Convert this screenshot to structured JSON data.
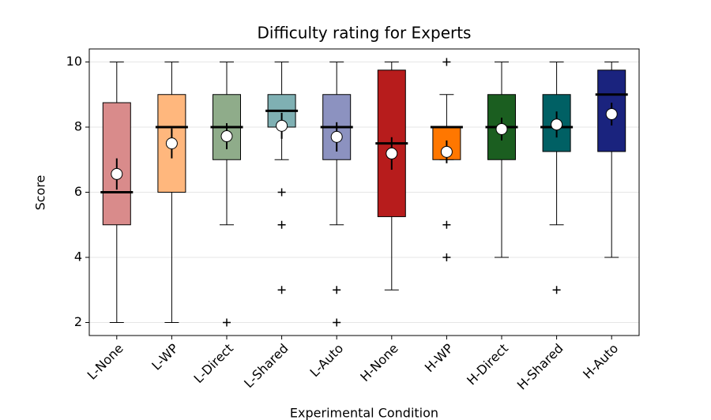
{
  "chart_data": {
    "type": "box",
    "title": "Difficulty rating for Experts",
    "x_label": "Experimental Condition",
    "y_label": "Score",
    "categories": [
      "L-None",
      "L-WP",
      "L-Direct",
      "L-Shared",
      "L-Auto",
      "H-None",
      "H-WP",
      "H-Direct",
      "H-Shared",
      "H-Auto"
    ],
    "ylim": [
      1.6,
      10.4
    ],
    "yticks": [
      2,
      4,
      6,
      8,
      10
    ],
    "grid": true,
    "boxes": [
      {
        "color": "#d98b8b",
        "whislo": 2,
        "q1": 5,
        "med": 6,
        "q3": 8.75,
        "whishi": 10,
        "mean": 6.56,
        "mean_err": 0.48,
        "fliers": []
      },
      {
        "color": "#ffb77d",
        "whislo": 2,
        "q1": 6,
        "med": 8,
        "q3": 9,
        "whishi": 10,
        "mean": 7.5,
        "mean_err": 0.46,
        "fliers": []
      },
      {
        "color": "#8fac8a",
        "whislo": 5,
        "q1": 7,
        "med": 8,
        "q3": 9,
        "whishi": 10,
        "mean": 7.72,
        "mean_err": 0.4,
        "fliers": [
          2
        ]
      },
      {
        "color": "#7fb0b3",
        "whislo": 7,
        "q1": 8,
        "med": 8.5,
        "q3": 9,
        "whishi": 10,
        "mean": 8.04,
        "mean_err": 0.4,
        "fliers": [
          6,
          5,
          3
        ]
      },
      {
        "color": "#8c92c0",
        "whislo": 5,
        "q1": 7,
        "med": 8,
        "q3": 9,
        "whishi": 10,
        "mean": 7.7,
        "mean_err": 0.45,
        "fliers": [
          3,
          2
        ]
      },
      {
        "color": "#b71c1c",
        "whislo": 3,
        "q1": 5.25,
        "med": 7.5,
        "q3": 9.75,
        "whishi": 10,
        "mean": 7.19,
        "mean_err": 0.5,
        "fliers": []
      },
      {
        "color": "#ff7700",
        "whislo": 7,
        "q1": 7,
        "med": 8,
        "q3": 8,
        "whishi": 9,
        "mean": 7.24,
        "mean_err": 0.35,
        "fliers": [
          10,
          5,
          4
        ]
      },
      {
        "color": "#1b5e20",
        "whislo": 4,
        "q1": 7,
        "med": 8,
        "q3": 9,
        "whishi": 10,
        "mean": 7.94,
        "mean_err": 0.35,
        "fliers": []
      },
      {
        "color": "#006064",
        "whislo": 5,
        "q1": 7.25,
        "med": 8,
        "q3": 9,
        "whishi": 10,
        "mean": 8.08,
        "mean_err": 0.4,
        "fliers": [
          3
        ]
      },
      {
        "color": "#1a237e",
        "whislo": 4,
        "q1": 7.25,
        "med": 9,
        "q3": 9.75,
        "whishi": 10,
        "mean": 8.4,
        "mean_err": 0.35,
        "fliers": []
      }
    ]
  }
}
